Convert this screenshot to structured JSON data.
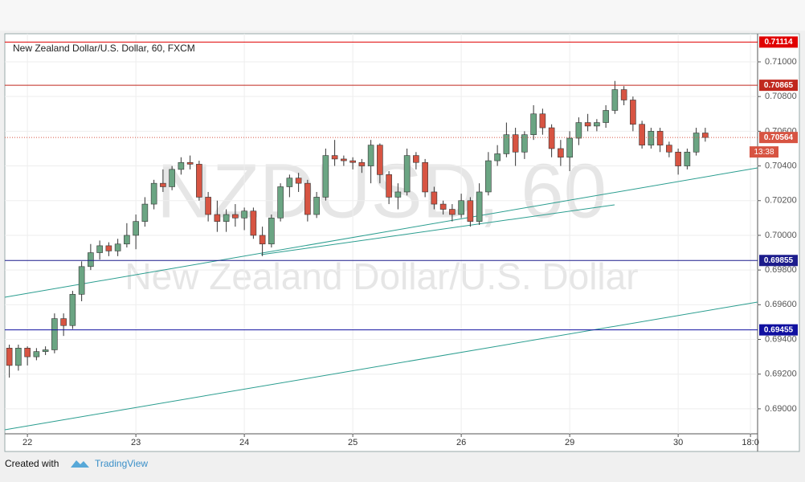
{
  "chart_data": {
    "type": "candlestick",
    "title": "New Zealand Dollar/U.S. Dollar, 60, FXCM",
    "watermark": "NZDUSD, 60",
    "watermark_subtitle": "New Zealand Dollar/U.S. Dollar",
    "categories": [
      null,
      null,
      "22",
      null,
      null,
      null,
      null,
      null,
      null,
      null,
      null,
      null,
      null,
      null,
      "23",
      null,
      null,
      null,
      null,
      null,
      null,
      null,
      null,
      null,
      null,
      null,
      "24",
      null,
      null,
      null,
      null,
      null,
      null,
      null,
      null,
      null,
      null,
      null,
      "25",
      null,
      null,
      null,
      null,
      null,
      null,
      null,
      null,
      null,
      null,
      null,
      "26",
      null,
      null,
      null,
      null,
      null,
      null,
      null,
      null,
      null,
      null,
      null,
      "29",
      null,
      null,
      null,
      null,
      null,
      null,
      null,
      null,
      null,
      null,
      null,
      "30",
      null,
      null,
      null,
      null,
      null,
      null,
      null,
      "18:0"
    ],
    "open": [
      0.6935,
      0.6925,
      0.6935,
      0.693,
      0.6933,
      0.6934,
      0.6952,
      0.6948,
      0.6966,
      0.6982,
      0.699,
      0.6994,
      0.6991,
      0.6995,
      0.7,
      0.7008,
      0.7018,
      0.703,
      0.7028,
      0.7038,
      0.7042,
      0.7041,
      0.7022,
      0.7012,
      0.7008,
      0.7012,
      0.701,
      0.7014,
      0.7,
      0.6995,
      0.701,
      0.7028,
      0.7033,
      0.703,
      0.7012,
      0.7022,
      0.7046,
      0.7044,
      0.7043,
      0.7042,
      0.704,
      0.7052,
      0.7035,
      0.7022,
      0.7025,
      0.7046,
      0.7042,
      0.7025,
      0.7018,
      0.7015,
      0.7012,
      0.702,
      0.7008,
      0.7025,
      0.7043,
      0.7047,
      0.7058,
      0.7048,
      0.7058,
      0.707,
      0.7062,
      0.705,
      0.7045,
      0.7056,
      0.7065,
      0.7063,
      0.7065,
      0.7072,
      0.7084,
      0.7078,
      0.7064,
      0.7052,
      0.706,
      0.7052,
      0.7048,
      0.704,
      0.7048,
      0.7059,
      null,
      null,
      null,
      null,
      null
    ],
    "high": [
      0.6937,
      0.6937,
      0.6936,
      0.6935,
      0.6936,
      0.6955,
      0.6955,
      0.6968,
      0.6985,
      0.6995,
      0.6997,
      0.6996,
      0.6998,
      0.7007,
      0.7012,
      0.7022,
      0.7032,
      0.7038,
      0.704,
      0.7045,
      0.7046,
      0.7043,
      0.7025,
      0.702,
      0.7015,
      0.7018,
      0.7016,
      0.7016,
      0.7005,
      0.7012,
      0.703,
      0.7035,
      0.7036,
      0.7032,
      0.7025,
      0.705,
      0.7055,
      0.7046,
      0.7045,
      0.7044,
      0.7055,
      0.7053,
      0.7037,
      0.703,
      0.705,
      0.7048,
      0.7044,
      0.7028,
      0.702,
      0.7018,
      0.7024,
      0.7022,
      0.703,
      0.7048,
      0.7052,
      0.7065,
      0.7062,
      0.706,
      0.7075,
      0.7073,
      0.7064,
      0.7055,
      0.706,
      0.7068,
      0.707,
      0.7067,
      0.7075,
      0.7089,
      0.7086,
      0.708,
      0.7066,
      0.7062,
      0.7062,
      0.7054,
      0.705,
      0.705,
      0.7062,
      0.7062,
      null,
      null,
      null,
      null,
      null
    ],
    "low": [
      0.6918,
      0.6922,
      0.6925,
      0.6928,
      0.6931,
      0.6932,
      0.6942,
      0.6946,
      0.6962,
      0.698,
      0.6986,
      0.6988,
      0.6988,
      0.6993,
      0.6992,
      0.7005,
      0.7015,
      0.7025,
      0.7026,
      0.7035,
      0.7038,
      0.702,
      0.7008,
      0.7002,
      0.7002,
      0.7005,
      0.7003,
      0.6998,
      0.6988,
      0.6993,
      0.7008,
      0.7022,
      0.7025,
      0.7008,
      0.701,
      0.702,
      0.704,
      0.704,
      0.7038,
      0.7036,
      0.703,
      0.703,
      0.7018,
      0.7015,
      0.7023,
      0.7038,
      0.7022,
      0.7015,
      0.7012,
      0.7008,
      0.701,
      0.7005,
      0.7006,
      0.7023,
      0.704,
      0.7045,
      0.704,
      0.7044,
      0.7055,
      0.7058,
      0.7045,
      0.704,
      0.7037,
      0.7052,
      0.706,
      0.706,
      0.7062,
      0.707,
      0.7075,
      0.706,
      0.705,
      0.705,
      0.7048,
      0.7045,
      0.7035,
      0.7038,
      0.7046,
      0.7054,
      null,
      null,
      null,
      null,
      null
    ],
    "close": [
      0.6925,
      0.6935,
      0.693,
      0.6933,
      0.6934,
      0.6952,
      0.6948,
      0.6966,
      0.6982,
      0.699,
      0.6994,
      0.6991,
      0.6995,
      0.7,
      0.7008,
      0.7018,
      0.703,
      0.7028,
      0.7038,
      0.7042,
      0.7041,
      0.7022,
      0.7012,
      0.7008,
      0.7012,
      0.701,
      0.7014,
      0.7,
      0.6995,
      0.701,
      0.7028,
      0.7033,
      0.703,
      0.7012,
      0.7022,
      0.7046,
      0.7044,
      0.7043,
      0.7042,
      0.704,
      0.7052,
      0.7035,
      0.7022,
      0.7025,
      0.7046,
      0.7042,
      0.7025,
      0.7018,
      0.7015,
      0.7012,
      0.702,
      0.7008,
      0.7025,
      0.7043,
      0.7047,
      0.7058,
      0.7048,
      0.7058,
      0.707,
      0.7062,
      0.705,
      0.7045,
      0.7056,
      0.7065,
      0.7063,
      0.7065,
      0.7072,
      0.7084,
      0.7078,
      0.7064,
      0.7052,
      0.706,
      0.7052,
      0.7048,
      0.704,
      0.7048,
      0.7059,
      0.70564,
      null,
      null,
      null,
      null,
      null
    ],
    "up_color": "#6ba583",
    "down_color": "#d75442",
    "ylim": [
      0.68856,
      0.71162
    ],
    "yticks": [
      {
        "value": 0.69,
        "label": "0.69000"
      },
      {
        "value": 0.692,
        "label": "0.69200"
      },
      {
        "value": 0.694,
        "label": "0.69400"
      },
      {
        "value": 0.696,
        "label": "0.69600"
      },
      {
        "value": 0.698,
        "label": "0.69800"
      },
      {
        "value": 0.7,
        "label": "0.70000"
      },
      {
        "value": 0.702,
        "label": "0.70200"
      },
      {
        "value": 0.704,
        "label": "0.70400"
      },
      {
        "value": 0.706,
        "label": "0.70600"
      },
      {
        "value": 0.708,
        "label": "0.70800"
      },
      {
        "value": 0.71,
        "label": "0.71000"
      }
    ],
    "grid": true,
    "levels": [
      {
        "value": 0.71114,
        "color": "#e00000"
      },
      {
        "value": 0.70865,
        "color": "#c0281e"
      },
      {
        "value": 0.69855,
        "color": "#1c1c8c"
      },
      {
        "value": 0.69455,
        "color": "#1010a0"
      }
    ],
    "last_price": 0.70564,
    "countdown": "13:38"
  },
  "footer": {
    "created_with": "Created with",
    "brand": "TradingView"
  }
}
